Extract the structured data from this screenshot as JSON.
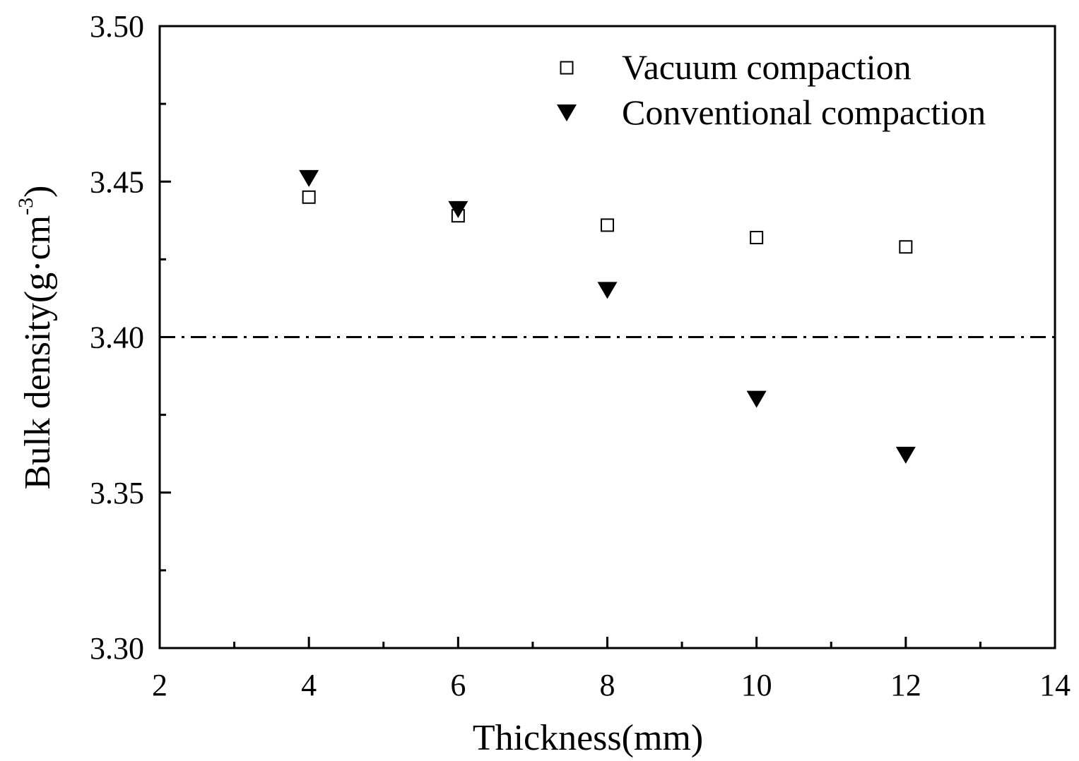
{
  "chart_data": {
    "type": "scatter",
    "title": "",
    "xlabel": "Thickness(mm)",
    "ylabel_main": "Bulk density(g·cm",
    "ylabel_sup": "-3",
    "ylabel_end": ")",
    "xlim": [
      2,
      14
    ],
    "ylim": [
      3.3,
      3.5
    ],
    "xticks": [
      2,
      4,
      6,
      8,
      10,
      12,
      14
    ],
    "xtick_labels": [
      "2",
      "4",
      "6",
      "8",
      "10",
      "12",
      "14"
    ],
    "xminor": [
      3,
      5,
      7,
      9,
      11,
      13
    ],
    "yticks": [
      3.3,
      3.35,
      3.4,
      3.45,
      3.5
    ],
    "ytick_labels": [
      "3.30",
      "3.35",
      "3.40",
      "3.45",
      "3.50"
    ],
    "yminor": [
      3.325,
      3.375,
      3.425,
      3.475
    ],
    "grid": false,
    "legend_position": "top-right",
    "series": [
      {
        "name": "Vacuum compaction",
        "marker": "open-square",
        "color": "#000000",
        "x": [
          4,
          6,
          8,
          10,
          12
        ],
        "y": [
          3.445,
          3.439,
          3.436,
          3.432,
          3.429
        ]
      },
      {
        "name": "Conventional compaction",
        "marker": "filled-down-triangle",
        "color": "#000000",
        "x": [
          4,
          6,
          8,
          10,
          12
        ],
        "y": [
          3.451,
          3.441,
          3.415,
          3.38,
          3.362
        ]
      }
    ],
    "reference_line": {
      "y": 3.4,
      "style": "dash-dot",
      "color": "#000000"
    }
  }
}
